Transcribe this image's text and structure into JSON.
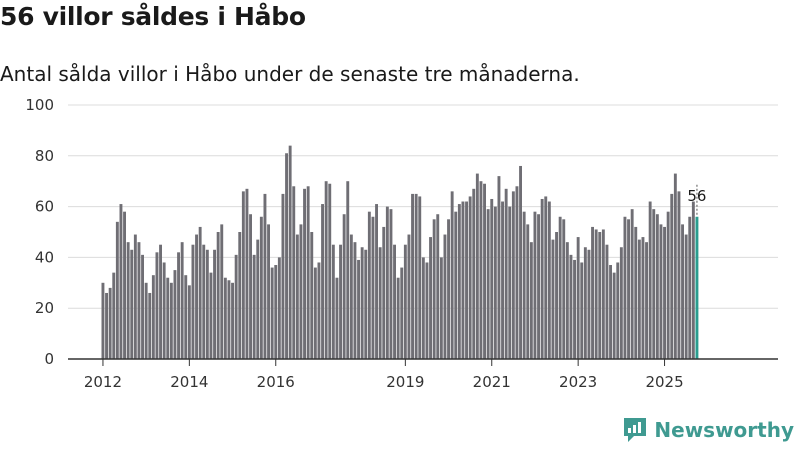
{
  "chart_data": {
    "type": "bar",
    "title": "56 villor såldes i Håbo",
    "subtitle": "Antal sålda villor i Håbo under de senaste tre månaderna.",
    "xlabel": "",
    "ylabel": "",
    "ylim": [
      0,
      100
    ],
    "yticks": [
      0,
      20,
      40,
      60,
      80,
      100
    ],
    "xticks": [
      {
        "label": "2012",
        "index": 0
      },
      {
        "label": "2014",
        "index": 24
      },
      {
        "label": "2016",
        "index": 48
      },
      {
        "label": "2019",
        "index": 84
      },
      {
        "label": "2021",
        "index": 108
      },
      {
        "label": "2023",
        "index": 132
      },
      {
        "label": "2025",
        "index": 156
      }
    ],
    "start": "2012-01",
    "values": [
      30,
      26,
      28,
      34,
      54,
      61,
      58,
      46,
      43,
      49,
      46,
      41,
      30,
      26,
      33,
      42,
      45,
      38,
      32,
      30,
      35,
      42,
      46,
      33,
      29,
      45,
      49,
      52,
      45,
      43,
      34,
      43,
      50,
      53,
      32,
      31,
      30,
      41,
      50,
      66,
      67,
      57,
      41,
      47,
      56,
      65,
      53,
      36,
      37,
      40,
      65,
      81,
      84,
      68,
      49,
      53,
      67,
      68,
      50,
      36,
      38,
      61,
      70,
      69,
      45,
      32,
      45,
      57,
      70,
      49,
      46,
      39,
      44,
      43,
      58,
      56,
      61,
      44,
      52,
      60,
      59,
      45,
      32,
      36,
      45,
      49,
      65,
      65,
      64,
      40,
      38,
      48,
      55,
      57,
      40,
      49,
      55,
      66,
      58,
      61,
      62,
      62,
      64,
      67,
      73,
      70,
      69,
      59,
      63,
      60,
      72,
      62,
      67,
      60,
      66,
      68,
      76,
      58,
      53,
      46,
      58,
      57,
      63,
      64,
      62,
      47,
      50,
      56,
      55,
      46,
      41,
      39,
      48,
      38,
      44,
      43,
      52,
      51,
      50,
      51,
      45,
      37,
      34,
      38,
      44,
      56,
      55,
      59,
      52,
      47,
      48,
      46,
      62,
      59,
      57,
      53,
      52,
      58,
      65,
      73,
      66,
      53,
      49,
      56,
      62,
      56
    ],
    "last_value_label": "56",
    "bar_color": "#6f6e74",
    "highlight_color": "#2a9d8f"
  },
  "brand": {
    "name": "Newsworthy",
    "color": "#3f9a91"
  }
}
